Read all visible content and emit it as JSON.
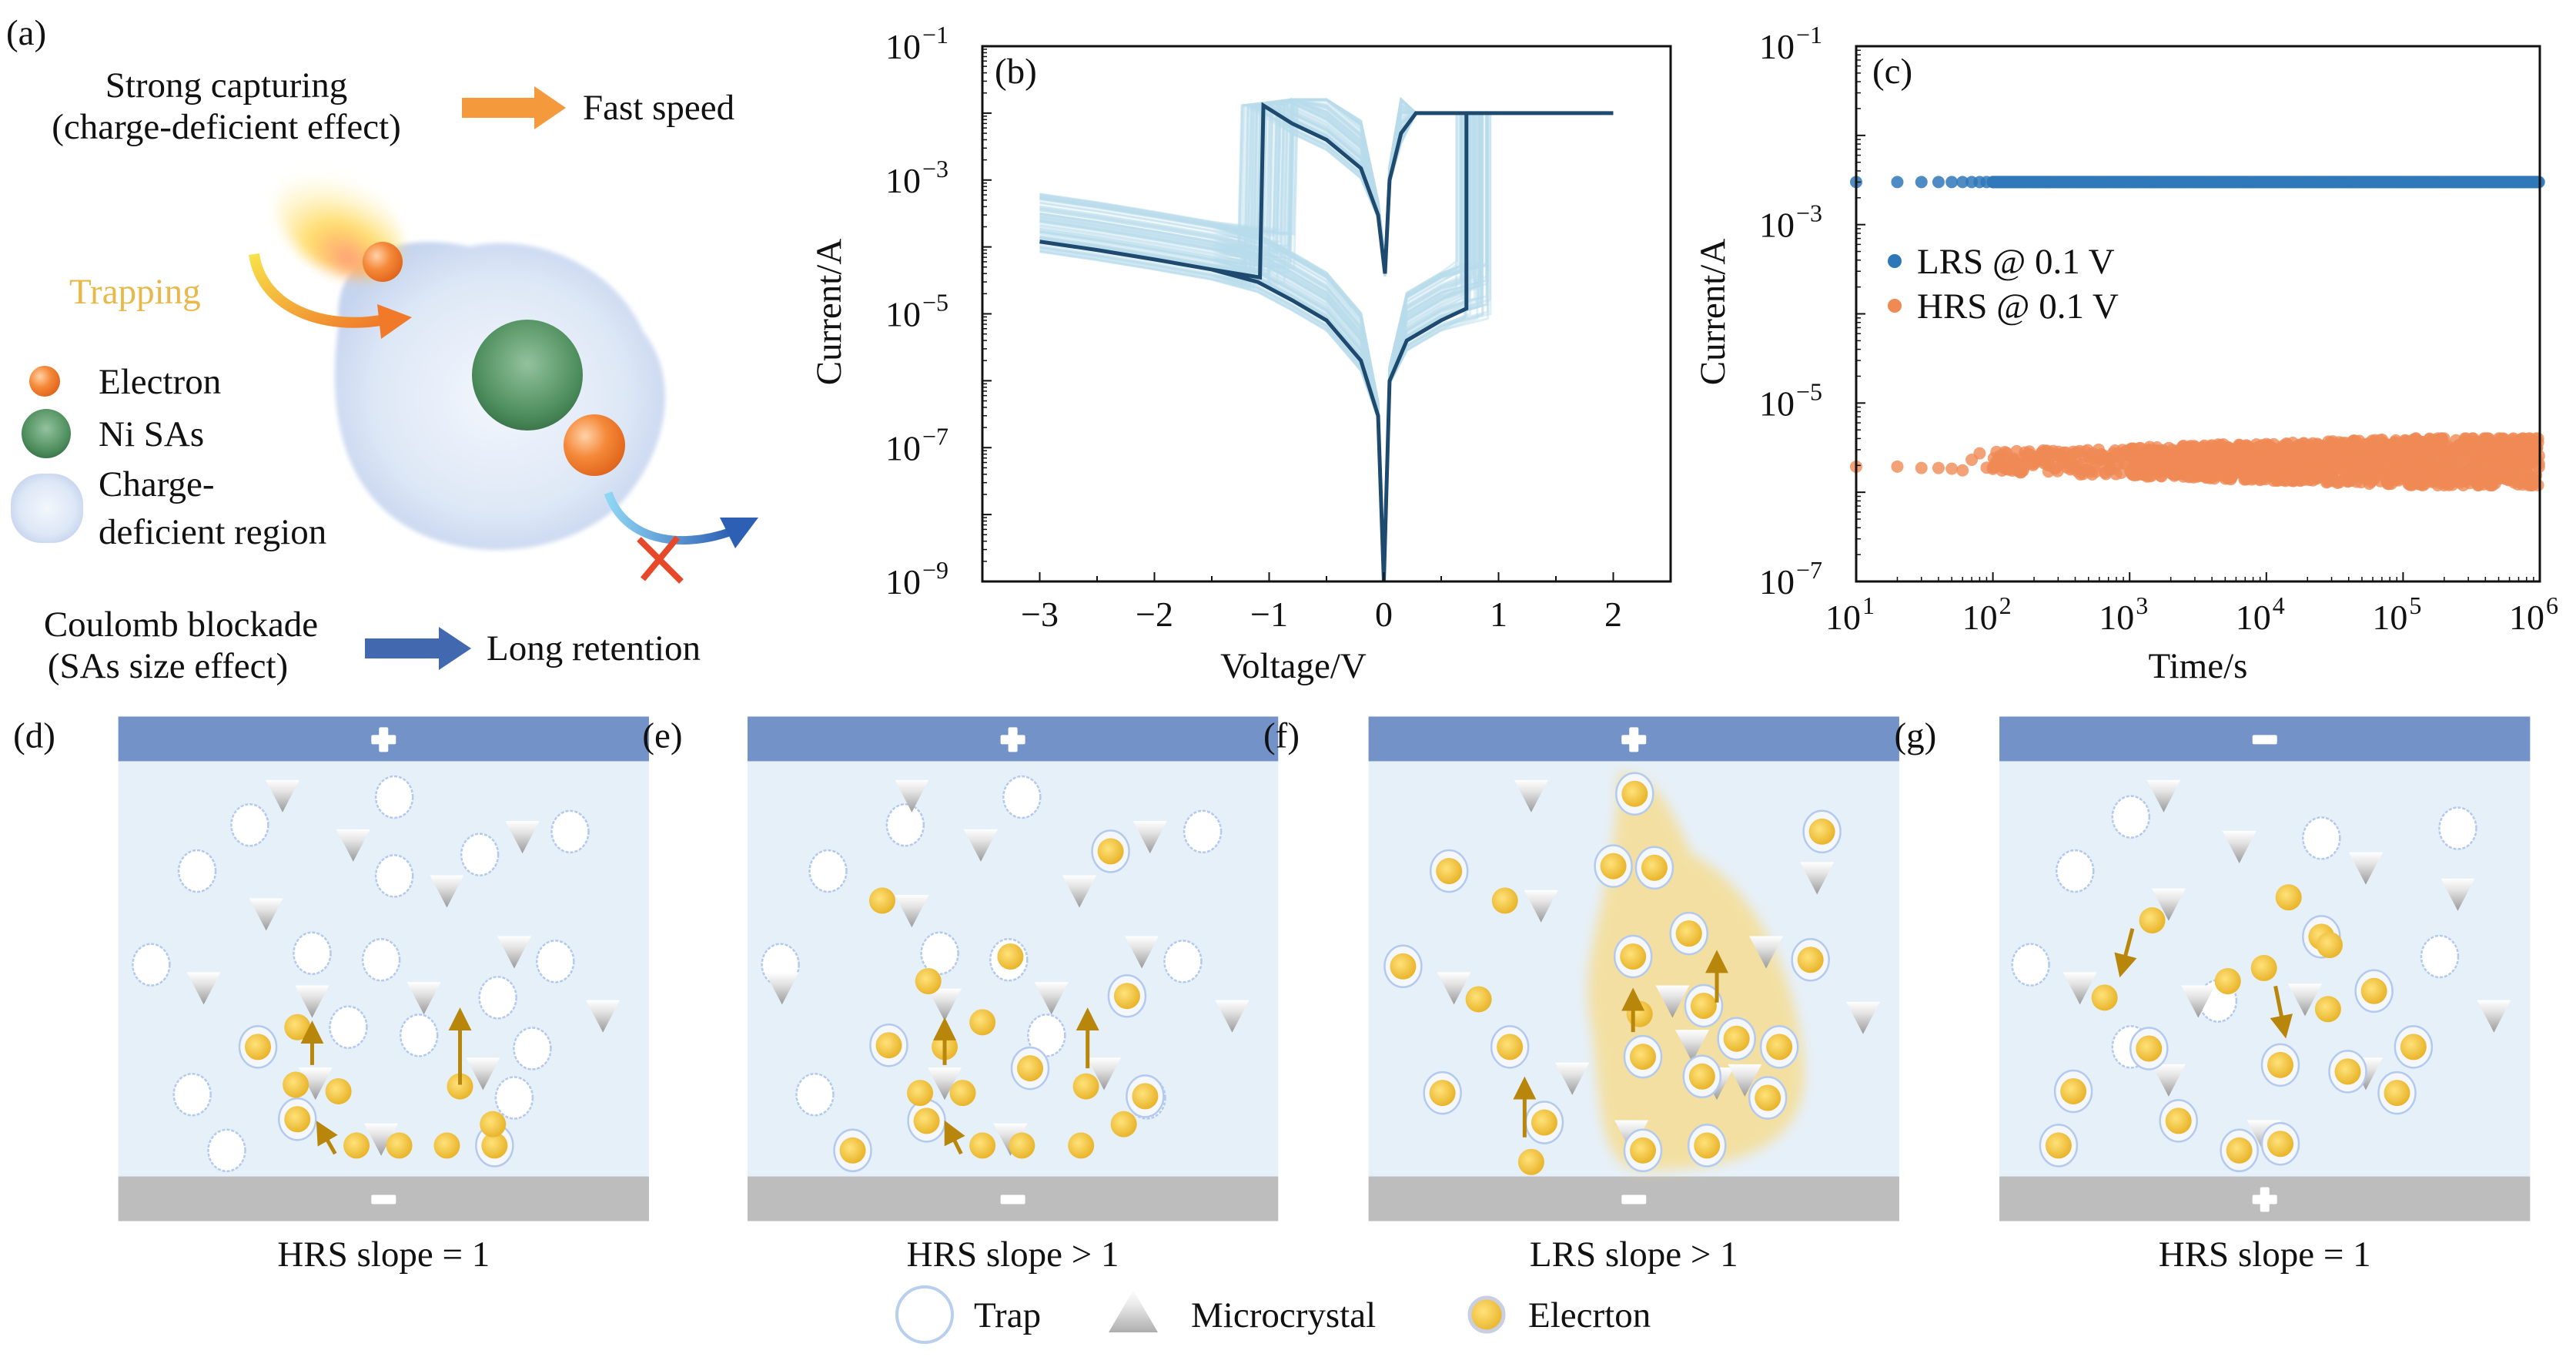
{
  "panel_a": {
    "label": "(a)",
    "strong_capturing": "Strong capturing",
    "charge_deficient_effect": "(charge-deficient effect)",
    "fast_speed": "Fast speed",
    "trapping": "Trapping",
    "legend": {
      "electron": "Electron",
      "ni_sas": "Ni SAs",
      "region_line1": "Charge-",
      "region_line2": "deficient region"
    },
    "coulomb_blockade": "Coulomb blockade",
    "sas_size_effect": "(SAs size effect)",
    "long_retention": "Long retention",
    "colors": {
      "fast_arrow": "#f59a3c",
      "retention_arrow": "#4268b0",
      "trapping_text": "#e8b84a",
      "ni": "#4f8f5e",
      "electron": "#f28a3a"
    }
  },
  "chart_data": [
    {
      "panel": "(b)",
      "type": "line",
      "xlabel": "Voltage/V",
      "ylabel": "Current/A",
      "xlim": [
        -3.5,
        2.5
      ],
      "ylim": [
        1e-09,
        0.1
      ],
      "yscale": "log",
      "xticks": [
        -3,
        -2,
        -1,
        0,
        1,
        2
      ],
      "xtick_labels": [
        "−3",
        "−2",
        "−1",
        "0",
        "1",
        "2"
      ],
      "ytick_exponents": [
        -1,
        -3,
        -5,
        -7,
        -9
      ],
      "grid": false,
      "colors": {
        "highlight": "#1d4a6e",
        "cycles": "#b9dbeb"
      },
      "highlight_cycle": {
        "x": [
          0,
          0.05,
          0.2,
          0.5,
          0.72,
          0.72,
          2,
          0.28,
          0.15,
          0.05,
          0.01,
          -0.05,
          -0.2,
          -0.5,
          -0.8,
          -1.05,
          -1.08,
          -1.5,
          -2,
          -2.5,
          -3,
          -2.5,
          -2,
          -1.5,
          -1.1,
          -0.8,
          -0.5,
          -0.2,
          -0.05,
          0
        ],
        "y": [
          1e-09,
          1e-06,
          4e-06,
          8e-06,
          1.2e-05,
          0.01,
          0.01,
          0.01,
          0.005,
          0.001,
          4e-05,
          0.0003,
          0.0015,
          0.004,
          0.007,
          0.013,
          3.5e-05,
          4.6e-05,
          6.5e-05,
          9e-05,
          0.00012,
          9e-05,
          6.5e-05,
          4.6e-05,
          3e-05,
          1.6e-05,
          8e-06,
          2e-06,
          3e-07,
          1e-09
        ]
      }
    },
    {
      "panel": "(c)",
      "type": "scatter",
      "xlabel": "Time/s",
      "ylabel": "Current/A",
      "xlim": [
        10,
        1000000
      ],
      "ylim": [
        1e-07,
        0.1
      ],
      "xscale": "log",
      "yscale": "log",
      "xtick_exponents": [
        1,
        2,
        3,
        4,
        5,
        6
      ],
      "ytick_exponents": [
        -1,
        -3,
        -5,
        -7
      ],
      "grid": false,
      "legend_position": "center-left",
      "series": [
        {
          "name": "LRS @ 0.1 V",
          "color": "#2f78b8",
          "current_A": 0.003,
          "range_A": [
            0.0029,
            0.0031
          ]
        },
        {
          "name": "HRS @ 0.1 V",
          "color": "#f08a55",
          "current_A": 2.2e-06,
          "range_A": [
            1.2e-06,
            4e-06
          ]
        }
      ]
    }
  ],
  "panels": [
    {
      "label": "(d)",
      "top_electrode": "+",
      "bottom_electrode": "−",
      "caption": "HRS slope = 1"
    },
    {
      "label": "(e)",
      "top_electrode": "+",
      "bottom_electrode": "−",
      "caption": "HRS slope > 1"
    },
    {
      "label": "(f)",
      "top_electrode": "+",
      "bottom_electrode": "−",
      "caption": "LRS slope > 1"
    },
    {
      "label": "(g)",
      "top_electrode": "−",
      "bottom_electrode": "+",
      "caption": "HRS slope = 1"
    }
  ],
  "legend": {
    "trap": "Trap",
    "microcrystal": "Microcrystal",
    "electron": "Elecrton"
  }
}
